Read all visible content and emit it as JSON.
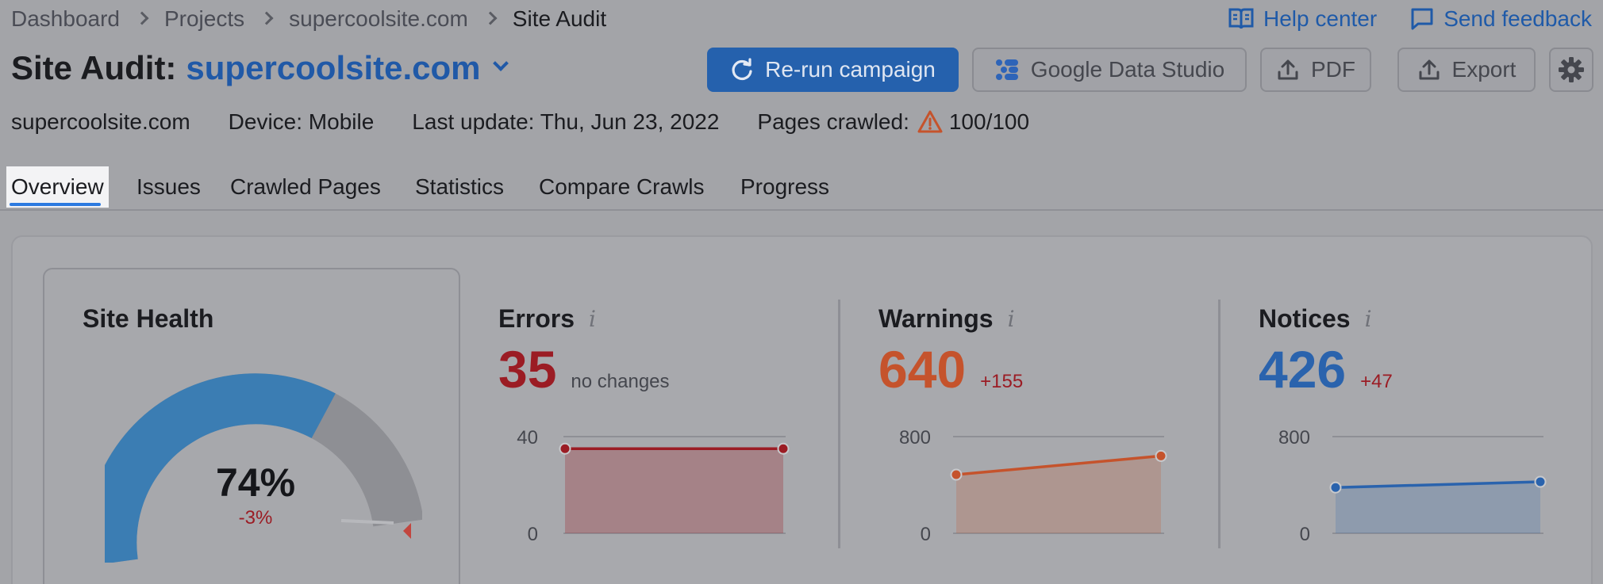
{
  "breadcrumb": [
    "Dashboard",
    "Projects",
    "supercoolsite.com",
    "Site Audit"
  ],
  "top_links": {
    "help": "Help center",
    "feedback": "Send feedback"
  },
  "title": {
    "prefix": "Site Audit:",
    "domain": "supercoolsite.com"
  },
  "toolbar": {
    "rerun": "Re-run campaign",
    "gds": "Google Data Studio",
    "pdf": "PDF",
    "export": "Export"
  },
  "meta": {
    "site": "supercoolsite.com",
    "device": "Device: Mobile",
    "last_update": "Last update: Thu, Jun 23, 2022",
    "pages_label": "Pages crawled:",
    "pages_value": "100/100"
  },
  "tabs": [
    "Overview",
    "Issues",
    "Crawled Pages",
    "Statistics",
    "Compare Crawls",
    "Progress"
  ],
  "site_health": {
    "title": "Site Health",
    "value": "74%",
    "change": "-3%",
    "fraction": 0.74
  },
  "metrics": {
    "errors": {
      "label": "Errors",
      "info": "i",
      "value": "35",
      "change": "no changes",
      "axis_max": "40",
      "axis_min": "0"
    },
    "warnings": {
      "label": "Warnings",
      "info": "i",
      "value": "640",
      "change": "+155",
      "axis_max": "800",
      "axis_min": "0"
    },
    "notices": {
      "label": "Notices",
      "info": "i",
      "value": "426",
      "change": "+47",
      "axis_max": "800",
      "axis_min": "0"
    }
  },
  "colors": {
    "errors": "#9b1c24",
    "warnings": "#c5532c",
    "notices": "#2a63ad",
    "accent": "#2561ad"
  },
  "chart_data": [
    {
      "type": "area",
      "title": "Errors",
      "series": [
        {
          "values": [
            35,
            35
          ]
        }
      ],
      "ylim": [
        0,
        40
      ]
    },
    {
      "type": "area",
      "title": "Warnings",
      "series": [
        {
          "values": [
            485,
            640
          ]
        }
      ],
      "ylim": [
        0,
        800
      ]
    },
    {
      "type": "area",
      "title": "Notices",
      "series": [
        {
          "values": [
            379,
            426
          ]
        }
      ],
      "ylim": [
        0,
        800
      ]
    }
  ]
}
